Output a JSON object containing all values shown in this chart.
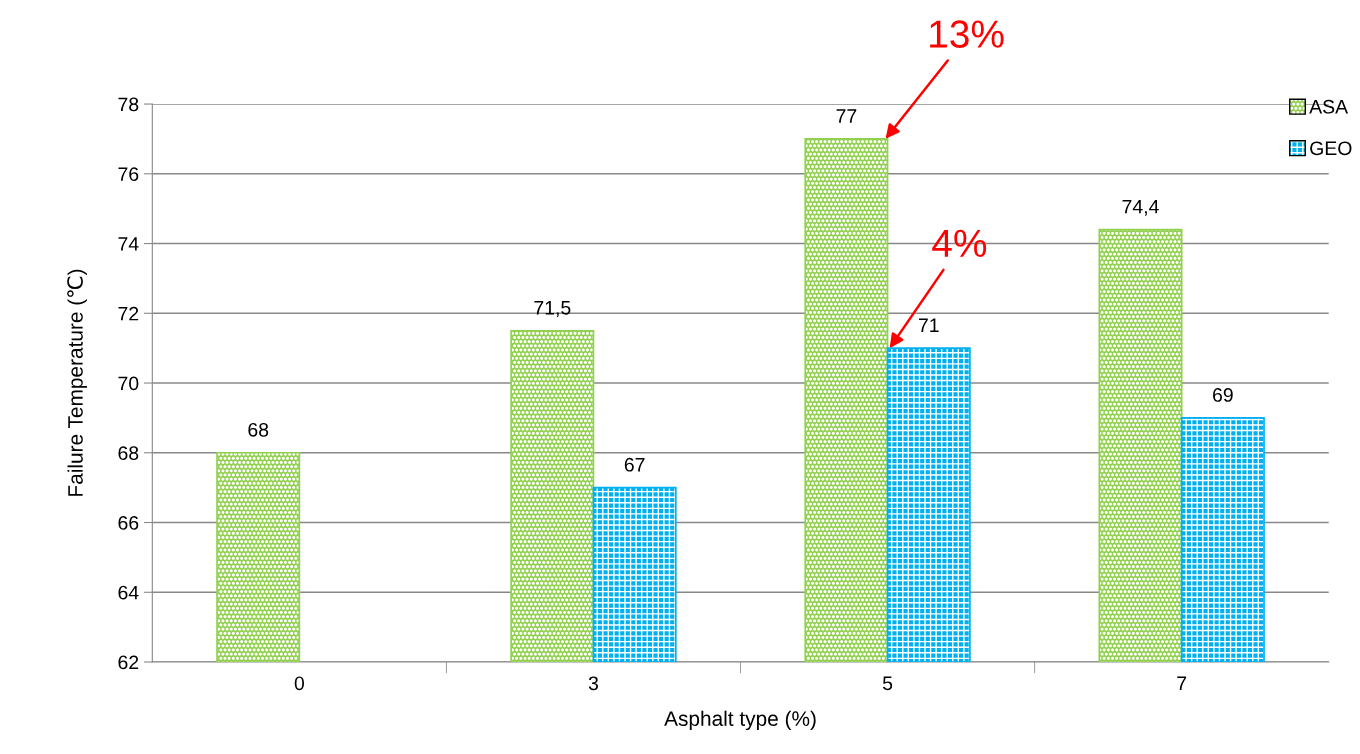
{
  "chart_data": {
    "type": "bar",
    "xlabel": "Asphalt type (%)",
    "ylabel": "Failure Temperature (℃)",
    "categories": [
      "0",
      "3",
      "5",
      "7"
    ],
    "series": [
      {
        "name": "ASA",
        "color": "#92d050",
        "values": [
          68,
          71.5,
          77,
          74.4
        ],
        "value_labels": [
          "68",
          "71,5",
          "77",
          "74,4"
        ]
      },
      {
        "name": "GEO",
        "color": "#00b0f0",
        "values": [
          null,
          67,
          71,
          69
        ],
        "value_labels": [
          null,
          "67",
          "71",
          "69"
        ]
      }
    ],
    "ylim": [
      62,
      78
    ],
    "yticks": [
      62,
      64,
      66,
      68,
      70,
      72,
      74,
      76,
      78
    ],
    "grid": "y",
    "legend": "top right",
    "annotations": [
      {
        "text": "13%",
        "x": "5",
        "y": 77
      },
      {
        "text": "4%",
        "x": "5",
        "y": 71
      }
    ]
  }
}
